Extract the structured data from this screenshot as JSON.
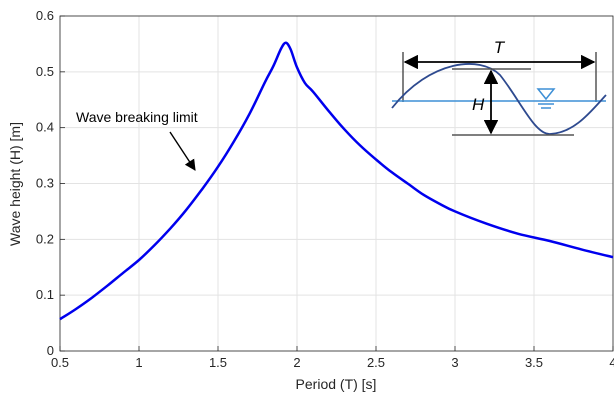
{
  "chart_data": {
    "type": "line",
    "title": "",
    "xlabel": "Period (T)  [s]",
    "ylabel": "Wave height (H)  [m]",
    "xlim": [
      0.5,
      4
    ],
    "ylim": [
      0,
      0.6
    ],
    "xticks": [
      0.5,
      1,
      1.5,
      2,
      2.5,
      3,
      3.5,
      4
    ],
    "xtick_labels": [
      "0.5",
      "1",
      "1.5",
      "2",
      "2.5",
      "3",
      "3.5",
      "4"
    ],
    "yticks": [
      0,
      0.1,
      0.2,
      0.3,
      0.4,
      0.5,
      0.6
    ],
    "ytick_labels": [
      "0",
      "0.1",
      "0.2",
      "0.3",
      "0.4",
      "0.5",
      "0.6"
    ],
    "grid": true,
    "series": [
      {
        "color": "#0000ee",
        "x": [
          0.5,
          0.6,
          0.7,
          0.8,
          0.9,
          1.0,
          1.1,
          1.2,
          1.3,
          1.4,
          1.5,
          1.6,
          1.7,
          1.8,
          1.85,
          1.9,
          1.93,
          1.96,
          2.0,
          2.05,
          2.1,
          2.2,
          2.3,
          2.4,
          2.5,
          2.6,
          2.7,
          2.8,
          2.9,
          3.0,
          3.2,
          3.4,
          3.6,
          3.8,
          4.0
        ],
        "y": [
          0.057,
          0.075,
          0.095,
          0.117,
          0.14,
          0.163,
          0.19,
          0.22,
          0.253,
          0.29,
          0.33,
          0.375,
          0.425,
          0.483,
          0.51,
          0.542,
          0.552,
          0.54,
          0.508,
          0.48,
          0.465,
          0.43,
          0.397,
          0.368,
          0.343,
          0.32,
          0.3,
          0.28,
          0.264,
          0.25,
          0.228,
          0.21,
          0.197,
          0.182,
          0.168
        ]
      }
    ],
    "annotations": [
      {
        "text": "Wave breaking limit",
        "arrow_to": [
          1.37,
          0.31
        ]
      }
    ],
    "inset": {
      "period_label": "T",
      "height_label": "H"
    }
  }
}
